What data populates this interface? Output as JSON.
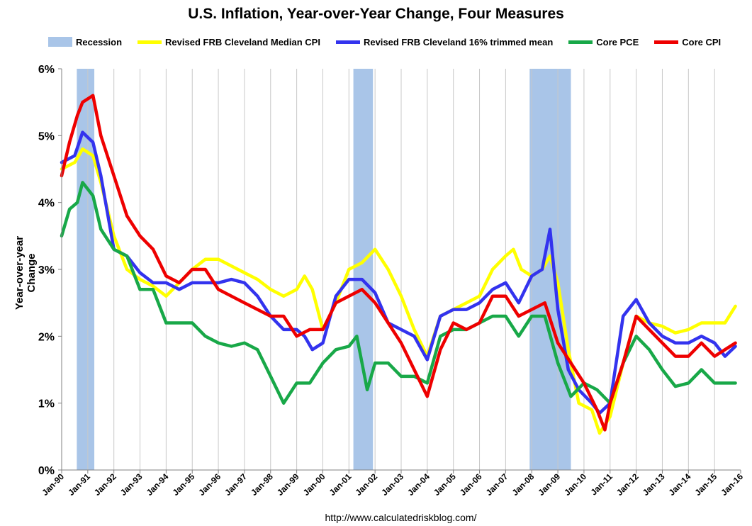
{
  "chart_data": {
    "type": "line",
    "title": "U.S. Inflation, Year-over-Year Change, Four Measures",
    "ylabel": "Year-over-year Change",
    "xlabel": "",
    "source": "http://www.calculatedriskblog.com/",
    "ylim": [
      0,
      6
    ],
    "xlim": [
      1990,
      2016
    ],
    "y_ticks": [
      "0%",
      "1%",
      "2%",
      "3%",
      "4%",
      "5%",
      "6%"
    ],
    "x_ticks": [
      "Jan-90",
      "Jan-91",
      "Jan-92",
      "Jan-93",
      "Jan-94",
      "Jan-95",
      "Jan-96",
      "Jan-97",
      "Jan-98",
      "Jan-99",
      "Jan-00",
      "Jan-01",
      "Jan-02",
      "Jan-03",
      "Jan-04",
      "Jan-05",
      "Jan-06",
      "Jan-07",
      "Jan-08",
      "Jan-09",
      "Jan-10",
      "Jan-11",
      "Jan-12",
      "Jan-13",
      "Jan-14",
      "Jan-15",
      "Jan-16"
    ],
    "grid": "vertical",
    "recessions": [
      {
        "label": "Recession",
        "start": 1990.58,
        "end": 1991.25
      },
      {
        "label": "Recession",
        "start": 2001.17,
        "end": 2001.92
      },
      {
        "label": "Recession",
        "start": 2007.92,
        "end": 2009.5
      }
    ],
    "series": [
      {
        "name": "Revised FRB Cleveland Median CPI",
        "color": "#ffff00",
        "points": [
          [
            1990.0,
            4.5
          ],
          [
            1990.5,
            4.6
          ],
          [
            1990.8,
            4.8
          ],
          [
            1991.2,
            4.7
          ],
          [
            1991.5,
            4.3
          ],
          [
            1992.0,
            3.5
          ],
          [
            1992.5,
            3.0
          ],
          [
            1993.0,
            2.85
          ],
          [
            1993.5,
            2.75
          ],
          [
            1994.0,
            2.6
          ],
          [
            1994.5,
            2.8
          ],
          [
            1995.0,
            3.0
          ],
          [
            1995.5,
            3.15
          ],
          [
            1996.0,
            3.15
          ],
          [
            1996.5,
            3.05
          ],
          [
            1997.0,
            2.95
          ],
          [
            1997.5,
            2.85
          ],
          [
            1998.0,
            2.7
          ],
          [
            1998.5,
            2.6
          ],
          [
            1999.0,
            2.7
          ],
          [
            1999.3,
            2.9
          ],
          [
            1999.6,
            2.7
          ],
          [
            2000.0,
            2.1
          ],
          [
            2000.5,
            2.5
          ],
          [
            2001.0,
            3.0
          ],
          [
            2001.5,
            3.1
          ],
          [
            2002.0,
            3.3
          ],
          [
            2002.5,
            3.0
          ],
          [
            2003.0,
            2.6
          ],
          [
            2003.5,
            2.1
          ],
          [
            2004.0,
            1.7
          ],
          [
            2004.5,
            2.3
          ],
          [
            2005.0,
            2.4
          ],
          [
            2005.5,
            2.5
          ],
          [
            2006.0,
            2.6
          ],
          [
            2006.5,
            3.0
          ],
          [
            2007.0,
            3.2
          ],
          [
            2007.3,
            3.3
          ],
          [
            2007.6,
            3.0
          ],
          [
            2008.0,
            2.9
          ],
          [
            2008.4,
            3.0
          ],
          [
            2008.7,
            3.2
          ],
          [
            2009.0,
            2.8
          ],
          [
            2009.4,
            1.8
          ],
          [
            2009.8,
            1.0
          ],
          [
            2010.3,
            0.9
          ],
          [
            2010.6,
            0.55
          ],
          [
            2011.0,
            0.8
          ],
          [
            2011.5,
            1.6
          ],
          [
            2012.0,
            2.3
          ],
          [
            2012.5,
            2.2
          ],
          [
            2013.0,
            2.15
          ],
          [
            2013.5,
            2.05
          ],
          [
            2014.0,
            2.1
          ],
          [
            2014.5,
            2.2
          ],
          [
            2015.0,
            2.2
          ],
          [
            2015.4,
            2.2
          ],
          [
            2015.8,
            2.45
          ]
        ]
      },
      {
        "name": "Revised FRB Cleveland 16% trimmed mean",
        "color": "#3333ee",
        "points": [
          [
            1990.0,
            4.6
          ],
          [
            1990.5,
            4.7
          ],
          [
            1990.8,
            5.05
          ],
          [
            1991.2,
            4.9
          ],
          [
            1991.5,
            4.4
          ],
          [
            1992.0,
            3.3
          ],
          [
            1992.5,
            3.2
          ],
          [
            1993.0,
            2.95
          ],
          [
            1993.5,
            2.8
          ],
          [
            1994.0,
            2.8
          ],
          [
            1994.5,
            2.7
          ],
          [
            1995.0,
            2.8
          ],
          [
            1995.5,
            2.8
          ],
          [
            1996.0,
            2.8
          ],
          [
            1996.5,
            2.85
          ],
          [
            1997.0,
            2.8
          ],
          [
            1997.5,
            2.6
          ],
          [
            1998.0,
            2.3
          ],
          [
            1998.5,
            2.1
          ],
          [
            1999.0,
            2.1
          ],
          [
            1999.3,
            2.0
          ],
          [
            1999.6,
            1.8
          ],
          [
            2000.0,
            1.9
          ],
          [
            2000.5,
            2.6
          ],
          [
            2001.0,
            2.85
          ],
          [
            2001.5,
            2.85
          ],
          [
            2002.0,
            2.65
          ],
          [
            2002.5,
            2.2
          ],
          [
            2003.0,
            2.1
          ],
          [
            2003.5,
            2.0
          ],
          [
            2004.0,
            1.65
          ],
          [
            2004.5,
            2.3
          ],
          [
            2005.0,
            2.4
          ],
          [
            2005.5,
            2.4
          ],
          [
            2006.0,
            2.5
          ],
          [
            2006.5,
            2.7
          ],
          [
            2007.0,
            2.8
          ],
          [
            2007.5,
            2.5
          ],
          [
            2008.0,
            2.9
          ],
          [
            2008.4,
            3.0
          ],
          [
            2008.7,
            3.6
          ],
          [
            2009.0,
            2.4
          ],
          [
            2009.4,
            1.5
          ],
          [
            2009.8,
            1.2
          ],
          [
            2010.3,
            1.0
          ],
          [
            2010.6,
            0.85
          ],
          [
            2011.0,
            1.0
          ],
          [
            2011.5,
            2.3
          ],
          [
            2012.0,
            2.55
          ],
          [
            2012.5,
            2.2
          ],
          [
            2013.0,
            2.0
          ],
          [
            2013.5,
            1.9
          ],
          [
            2014.0,
            1.9
          ],
          [
            2014.5,
            2.0
          ],
          [
            2015.0,
            1.9
          ],
          [
            2015.4,
            1.7
          ],
          [
            2015.8,
            1.85
          ]
        ]
      },
      {
        "name": "Core PCE",
        "color": "#18a848",
        "points": [
          [
            1990.0,
            3.5
          ],
          [
            1990.3,
            3.9
          ],
          [
            1990.6,
            4.0
          ],
          [
            1990.8,
            4.3
          ],
          [
            1991.2,
            4.1
          ],
          [
            1991.5,
            3.6
          ],
          [
            1992.0,
            3.3
          ],
          [
            1992.5,
            3.2
          ],
          [
            1993.0,
            2.7
          ],
          [
            1993.5,
            2.7
          ],
          [
            1994.0,
            2.2
          ],
          [
            1994.5,
            2.2
          ],
          [
            1995.0,
            2.2
          ],
          [
            1995.5,
            2.0
          ],
          [
            1996.0,
            1.9
          ],
          [
            1996.5,
            1.85
          ],
          [
            1997.0,
            1.9
          ],
          [
            1997.5,
            1.8
          ],
          [
            1998.0,
            1.4
          ],
          [
            1998.5,
            1.0
          ],
          [
            1999.0,
            1.3
          ],
          [
            1999.5,
            1.3
          ],
          [
            2000.0,
            1.6
          ],
          [
            2000.5,
            1.8
          ],
          [
            2001.0,
            1.85
          ],
          [
            2001.3,
            2.0
          ],
          [
            2001.7,
            1.2
          ],
          [
            2002.0,
            1.6
          ],
          [
            2002.5,
            1.6
          ],
          [
            2003.0,
            1.4
          ],
          [
            2003.5,
            1.4
          ],
          [
            2004.0,
            1.3
          ],
          [
            2004.5,
            2.0
          ],
          [
            2005.0,
            2.1
          ],
          [
            2005.5,
            2.1
          ],
          [
            2006.0,
            2.2
          ],
          [
            2006.5,
            2.3
          ],
          [
            2007.0,
            2.3
          ],
          [
            2007.5,
            2.0
          ],
          [
            2008.0,
            2.3
          ],
          [
            2008.5,
            2.3
          ],
          [
            2009.0,
            1.6
          ],
          [
            2009.5,
            1.1
          ],
          [
            2010.0,
            1.3
          ],
          [
            2010.5,
            1.2
          ],
          [
            2011.0,
            1.0
          ],
          [
            2011.5,
            1.6
          ],
          [
            2012.0,
            2.0
          ],
          [
            2012.5,
            1.8
          ],
          [
            2013.0,
            1.5
          ],
          [
            2013.5,
            1.25
          ],
          [
            2014.0,
            1.3
          ],
          [
            2014.5,
            1.5
          ],
          [
            2015.0,
            1.3
          ],
          [
            2015.4,
            1.3
          ],
          [
            2015.8,
            1.3
          ]
        ]
      },
      {
        "name": "Core CPI",
        "color": "#ee0000",
        "points": [
          [
            1990.0,
            4.4
          ],
          [
            1990.3,
            4.9
          ],
          [
            1990.6,
            5.3
          ],
          [
            1990.8,
            5.5
          ],
          [
            1991.2,
            5.6
          ],
          [
            1991.5,
            5.0
          ],
          [
            1992.0,
            4.4
          ],
          [
            1992.5,
            3.8
          ],
          [
            1993.0,
            3.5
          ],
          [
            1993.5,
            3.3
          ],
          [
            1994.0,
            2.9
          ],
          [
            1994.5,
            2.8
          ],
          [
            1995.0,
            3.0
          ],
          [
            1995.5,
            3.0
          ],
          [
            1996.0,
            2.7
          ],
          [
            1996.5,
            2.6
          ],
          [
            1997.0,
            2.5
          ],
          [
            1997.5,
            2.4
          ],
          [
            1998.0,
            2.3
          ],
          [
            1998.5,
            2.3
          ],
          [
            1999.0,
            2.0
          ],
          [
            1999.5,
            2.1
          ],
          [
            2000.0,
            2.1
          ],
          [
            2000.5,
            2.5
          ],
          [
            2001.0,
            2.6
          ],
          [
            2001.5,
            2.7
          ],
          [
            2002.0,
            2.5
          ],
          [
            2002.5,
            2.2
          ],
          [
            2003.0,
            1.9
          ],
          [
            2003.5,
            1.5
          ],
          [
            2004.0,
            1.1
          ],
          [
            2004.5,
            1.8
          ],
          [
            2005.0,
            2.2
          ],
          [
            2005.5,
            2.1
          ],
          [
            2006.0,
            2.2
          ],
          [
            2006.5,
            2.6
          ],
          [
            2007.0,
            2.6
          ],
          [
            2007.5,
            2.3
          ],
          [
            2008.0,
            2.4
          ],
          [
            2008.5,
            2.5
          ],
          [
            2009.0,
            1.9
          ],
          [
            2009.5,
            1.6
          ],
          [
            2010.0,
            1.3
          ],
          [
            2010.5,
            0.9
          ],
          [
            2010.8,
            0.6
          ],
          [
            2011.0,
            1.0
          ],
          [
            2011.5,
            1.6
          ],
          [
            2012.0,
            2.3
          ],
          [
            2012.5,
            2.1
          ],
          [
            2013.0,
            1.9
          ],
          [
            2013.5,
            1.7
          ],
          [
            2014.0,
            1.7
          ],
          [
            2014.5,
            1.9
          ],
          [
            2015.0,
            1.7
          ],
          [
            2015.4,
            1.8
          ],
          [
            2015.8,
            1.9
          ]
        ]
      }
    ]
  },
  "legend": {
    "recession": "Recession",
    "median_cpi": "Revised FRB Cleveland Median CPI",
    "trimmed_mean": "Revised FRB Cleveland 16% trimmed mean",
    "core_pce": "Core PCE",
    "core_cpi": "Core CPI"
  },
  "colors": {
    "recession": "#a9c5e8",
    "median_cpi": "#ffff00",
    "trimmed_mean": "#3333ee",
    "core_pce": "#18a848",
    "core_cpi": "#ee0000",
    "grid": "#c8c8c8",
    "axis": "#808080"
  }
}
